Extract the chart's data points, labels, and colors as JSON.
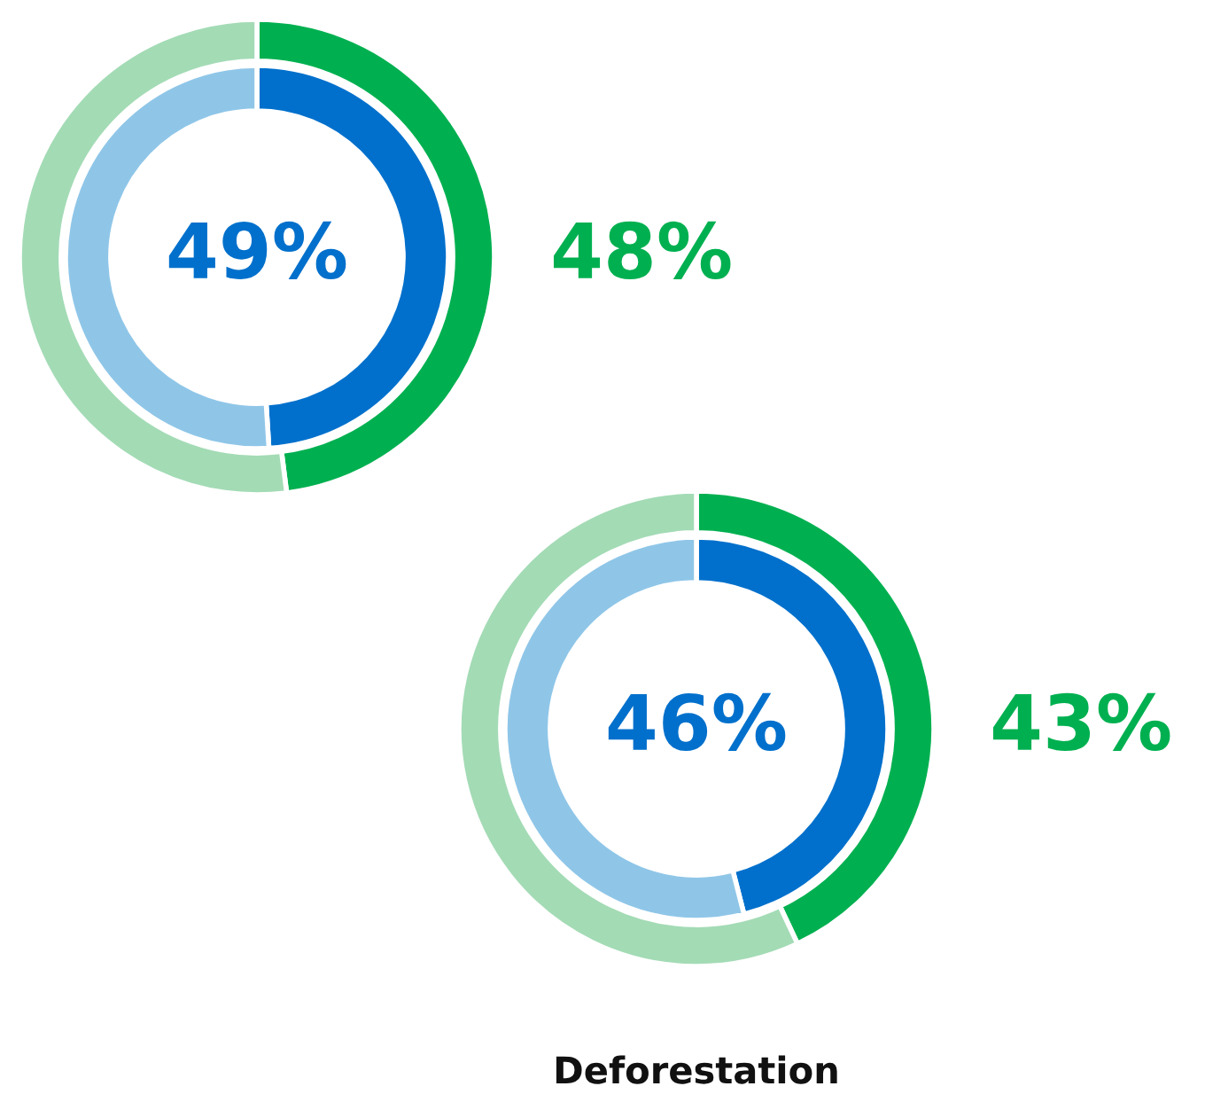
{
  "chart_data": [
    {
      "type": "donut",
      "categories": [
        null,
        null
      ],
      "series": [
        {
          "values": [
            48,
            52
          ],
          "colors": [
            "#00b050",
            "#a3dbb5"
          ],
          "value_labels": [
            "48%",
            null
          ]
        },
        {
          "values": [
            49,
            51
          ],
          "colors": [
            "#0070cc",
            "#8fc6e8"
          ],
          "value_labels": [
            "49%",
            null
          ]
        }
      ]
    },
    {
      "type": "donut",
      "title": "Deforestation",
      "categories": [
        null,
        null
      ],
      "series": [
        {
          "values": [
            43,
            57
          ],
          "colors": [
            "#00b050",
            "#a3dbb5"
          ],
          "value_labels": [
            "43%",
            null
          ]
        },
        {
          "values": [
            46,
            54
          ],
          "colors": [
            "#0070cc",
            "#8fc6e8"
          ],
          "value_labels": [
            "46%",
            null
          ]
        }
      ]
    }
  ]
}
